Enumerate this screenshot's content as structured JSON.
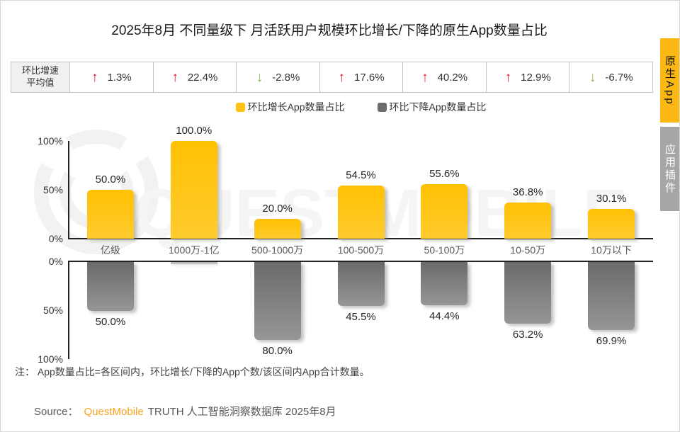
{
  "title": "2025年8月 不同量级下 月活跃用户规模环比增长/下降的原生App数量占比",
  "avg_row": {
    "header_line1": "环比增速",
    "header_line2": "平均值",
    "cells": [
      {
        "direction": "up",
        "value": "1.3%"
      },
      {
        "direction": "up",
        "value": "22.4%"
      },
      {
        "direction": "down",
        "value": "-2.8%"
      },
      {
        "direction": "up",
        "value": "17.6%"
      },
      {
        "direction": "up",
        "value": "40.2%"
      },
      {
        "direction": "up",
        "value": "12.9%"
      },
      {
        "direction": "down",
        "value": "-6.7%"
      }
    ]
  },
  "legend": {
    "items": [
      {
        "label": "环比增长App数量占比",
        "color": "#FFC215"
      },
      {
        "label": "环比下降App数量占比",
        "color": "#6B6B6B"
      }
    ]
  },
  "chart_data": {
    "type": "bar",
    "categories": [
      "亿级",
      "1000万-1亿",
      "500-1000万",
      "100-500万",
      "50-100万",
      "10-50万",
      "10万以下"
    ],
    "series": [
      {
        "name": "环比增长App数量占比",
        "axis": "top",
        "color": "#FFC400",
        "values": [
          50.0,
          100.0,
          20.0,
          54.5,
          55.6,
          36.8,
          30.1
        ],
        "labels": [
          "50.0%",
          "100.0%",
          "20.0%",
          "54.5%",
          "55.6%",
          "36.8%",
          "30.1%"
        ]
      },
      {
        "name": "环比下降App数量占比",
        "axis": "bottom",
        "color": "#7A7A7A",
        "values": [
          50.0,
          0.0,
          80.0,
          45.5,
          44.4,
          63.2,
          69.9
        ],
        "labels": [
          "50.0%",
          "",
          "80.0%",
          "45.5%",
          "44.4%",
          "63.2%",
          "69.9%"
        ]
      }
    ],
    "avg_growth_rate_row": [
      "1.3%",
      "22.4%",
      "-2.8%",
      "17.6%",
      "40.2%",
      "12.9%",
      "-6.7%"
    ],
    "y_axis_top_ticks": [
      "100%",
      "50%",
      "0%"
    ],
    "y_axis_bottom_ticks": [
      "0%",
      "50%",
      "100%"
    ],
    "ylim": [
      0,
      100
    ],
    "grid": false,
    "legend_position": "top"
  },
  "note": "注： App数量占比=各区间内，环比增长/下降的App个数/该区间内App合计数量。",
  "source": {
    "prefix": "Source：",
    "brand": "QuestMobile",
    "rest": "TRUTH 人工智能洞察数据库 2025年8月"
  },
  "side_tabs": [
    {
      "label": "原生App",
      "active": true
    },
    {
      "label": "应用插件",
      "active": false
    }
  ],
  "watermark": {
    "text": "QUESTMOBILE"
  },
  "colors": {
    "bar_up_top": "#FFC103",
    "bar_up_bottom": "#FFCB2E",
    "bar_down_top": "#6A6A6A",
    "bar_down_bottom": "#969696",
    "arrow_up": "#E8112D",
    "arrow_down": "#82BB47",
    "tab_active_bg": "#FBB712",
    "tab_inactive_bg": "#A6A6A6",
    "brand_orange": "#F8A322"
  }
}
